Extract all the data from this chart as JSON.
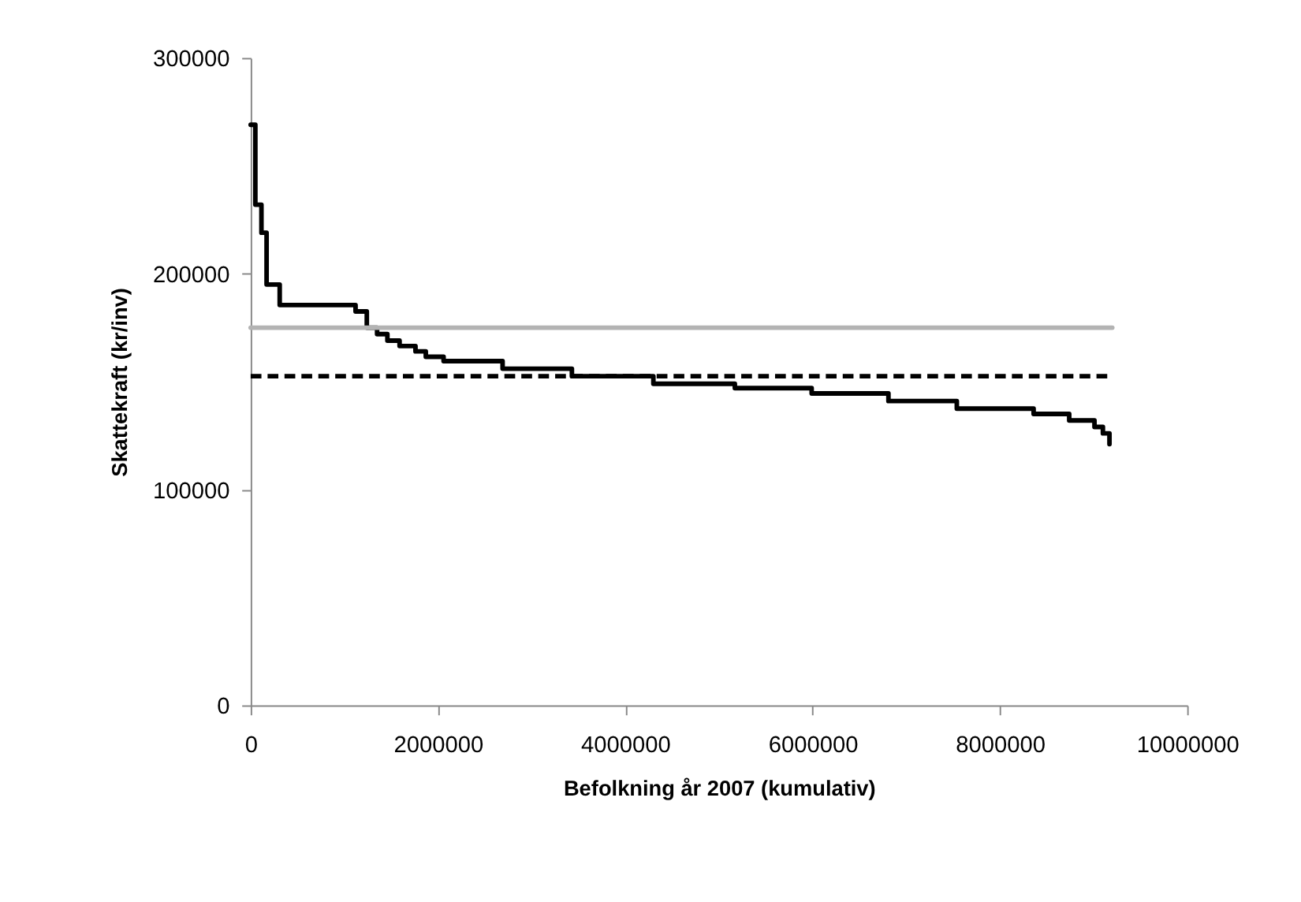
{
  "chart_data": {
    "type": "step",
    "xlabel": "Befolkning år 2007 (kumulativ)",
    "ylabel": "Skattekraft (kr/inv)",
    "xlim": [
      0,
      10000000
    ],
    "xticks": [
      0,
      2000000,
      4000000,
      6000000,
      8000000,
      10000000
    ],
    "ylim": [
      0,
      300000
    ],
    "yticks": [
      0,
      100000,
      200000,
      300000
    ],
    "grid": false,
    "legend": false,
    "series": [
      {
        "type": "step",
        "color": "#000000",
        "line_style": "solid",
        "x": [
          0,
          50000,
          115000,
          170000,
          310000,
          1120000,
          1240000,
          1350000,
          1460000,
          1590000,
          1760000,
          1870000,
          2060000,
          2690000,
          3430000,
          4300000,
          5170000,
          5990000,
          6810000,
          7540000,
          8360000,
          8740000,
          9010000,
          9100000,
          9170000
        ],
        "values": [
          269000,
          232000,
          219000,
          195000,
          185500,
          182500,
          175000,
          172000,
          169000,
          166500,
          164000,
          161500,
          159500,
          156000,
          152500,
          149000,
          147000,
          144500,
          141000,
          137500,
          135000,
          132000,
          129000,
          126000,
          121000
        ]
      },
      {
        "type": "line",
        "color": "#b3b3b3",
        "line_style": "solid",
        "x": [
          0,
          9200000
        ],
        "values": [
          175000,
          175000
        ]
      },
      {
        "type": "line",
        "color": "#000000",
        "line_style": "dashed",
        "x": [
          0,
          9170000
        ],
        "values": [
          152500,
          152500
        ]
      }
    ]
  }
}
